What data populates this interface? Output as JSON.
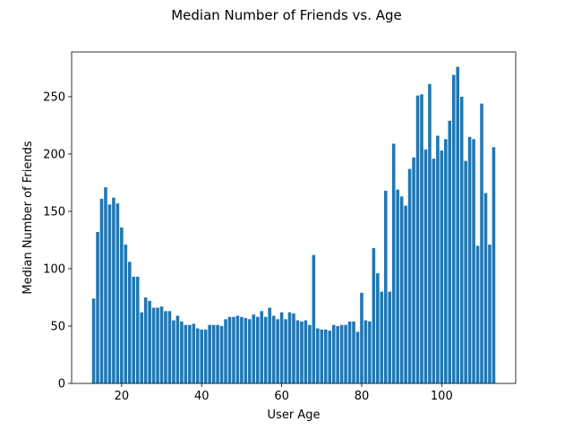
{
  "chart_data": {
    "type": "bar",
    "title": "Median Number of Friends vs. Age",
    "xlabel": "User Age",
    "ylabel": "Median Number of Friends",
    "xlim": [
      7.5,
      118.5
    ],
    "ylim": [
      0,
      289
    ],
    "xticks": [
      20,
      40,
      60,
      80,
      100
    ],
    "yticks": [
      0,
      50,
      100,
      150,
      200,
      250
    ],
    "grid": false,
    "legend": false,
    "bar_color": "#1f77b4",
    "x": [
      13,
      14,
      15,
      16,
      17,
      18,
      19,
      20,
      21,
      22,
      23,
      24,
      25,
      26,
      27,
      28,
      29,
      30,
      31,
      32,
      33,
      34,
      35,
      36,
      37,
      38,
      39,
      40,
      41,
      42,
      43,
      44,
      45,
      46,
      47,
      48,
      49,
      50,
      51,
      52,
      53,
      54,
      55,
      56,
      57,
      58,
      59,
      60,
      61,
      62,
      63,
      64,
      65,
      66,
      67,
      68,
      69,
      70,
      71,
      72,
      73,
      74,
      75,
      76,
      77,
      78,
      79,
      80,
      81,
      82,
      83,
      84,
      85,
      86,
      87,
      88,
      89,
      90,
      91,
      92,
      93,
      94,
      95,
      96,
      97,
      98,
      99,
      100,
      101,
      102,
      103,
      104,
      105,
      106,
      107,
      108,
      109,
      110,
      111,
      112,
      113
    ],
    "values": [
      74,
      132,
      161,
      171,
      156,
      162,
      157,
      136,
      121,
      106,
      93,
      93,
      62,
      75,
      72,
      66,
      66,
      67,
      63,
      63,
      55,
      59,
      54,
      51,
      51,
      52,
      48,
      47,
      47,
      51,
      51,
      51,
      50,
      56,
      58,
      58,
      59,
      58,
      57,
      56,
      60,
      58,
      63,
      58,
      66,
      59,
      56,
      62,
      56,
      62,
      61,
      55,
      54,
      55,
      51,
      112,
      48,
      47,
      47,
      46,
      51,
      50,
      51,
      51,
      54,
      54,
      45,
      79,
      55,
      54,
      118,
      96,
      80,
      168,
      80,
      209,
      169,
      163,
      155,
      187,
      197,
      251,
      252,
      204,
      261,
      196,
      216,
      203,
      213,
      229,
      269,
      276,
      250,
      194,
      215,
      213,
      120,
      244,
      166,
      121,
      206
    ]
  }
}
